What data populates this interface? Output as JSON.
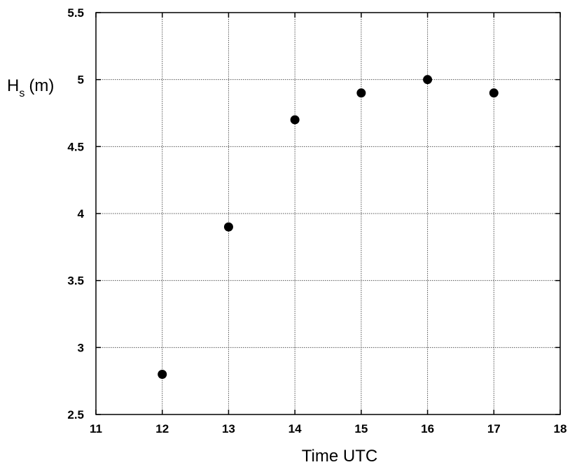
{
  "chart_data": {
    "type": "scatter",
    "title": "",
    "xlabel": "Time  UTC",
    "ylabel": {
      "main": "H",
      "subscript": "s",
      "unit": "(m)"
    },
    "xlim": [
      11,
      18
    ],
    "ylim": [
      2.5,
      5.5
    ],
    "xticks": [
      "11",
      "12",
      "13",
      "14",
      "15",
      "16",
      "17",
      "18"
    ],
    "yticks": [
      "2.5",
      "3",
      "3.5",
      "4",
      "4.5",
      "5",
      "5.5"
    ],
    "grid": true,
    "legend": "none",
    "marker_color": "#000000",
    "series": [
      {
        "x": [
          12,
          13,
          14,
          15,
          16,
          17
        ],
        "y": [
          2.8,
          3.9,
          4.7,
          4.9,
          5.0,
          4.9
        ]
      }
    ]
  }
}
